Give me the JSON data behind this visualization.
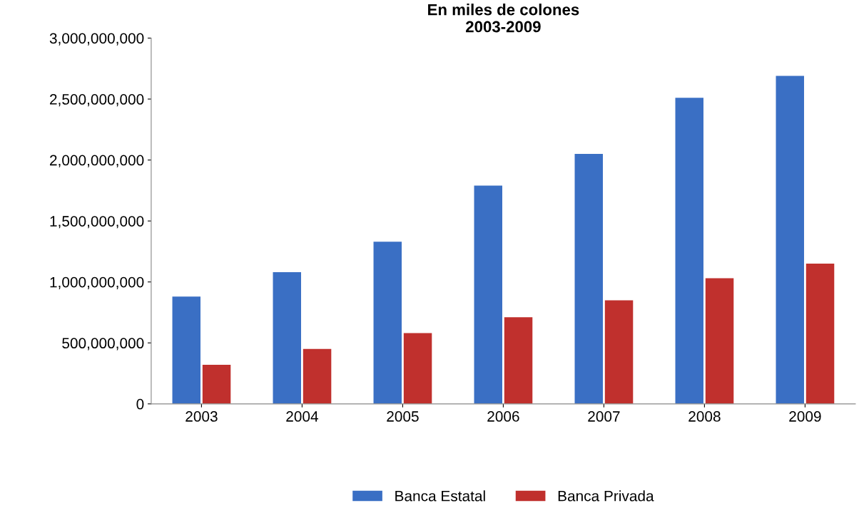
{
  "chart_data": {
    "type": "bar",
    "title": "En miles de colones\n2003-2009",
    "categories": [
      "2003",
      "2004",
      "2005",
      "2006",
      "2007",
      "2008",
      "2009"
    ],
    "series": [
      {
        "name": "Banca Estatal",
        "color": "#3a6fc4",
        "values": [
          880000000,
          1080000000,
          1330000000,
          1790000000,
          2050000000,
          2510000000,
          2690000000
        ]
      },
      {
        "name": "Banca Privada",
        "color": "#c0302d",
        "values": [
          320000000,
          450000000,
          580000000,
          710000000,
          850000000,
          1030000000,
          1150000000
        ]
      }
    ],
    "ylim": [
      0,
      3000000000
    ],
    "yticks": [
      0,
      {
        "value": 500000000,
        "label": "500,000,000"
      },
      {
        "value": 1000000000,
        "label": "1,000,000,000"
      },
      {
        "value": 1500000000,
        "label": "1,500,000,000"
      },
      {
        "value": 2000000000,
        "label": "2,000,000,000"
      },
      {
        "value": 2500000000,
        "label": "2,500,000,000"
      },
      {
        "value": 3000000000,
        "label": "3,000,000,000"
      }
    ],
    "grid": false,
    "legend": "bottom"
  }
}
